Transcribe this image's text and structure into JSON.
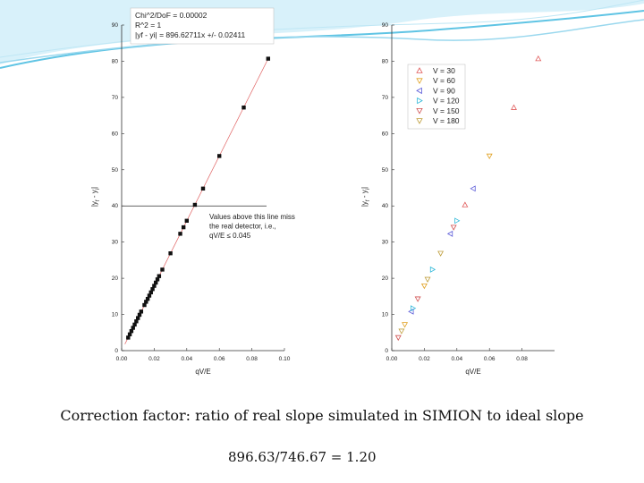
{
  "caption": "Correction factor: ratio of real slope simulated in SIMION to ideal slope",
  "ratio_text": "896.63/746.67 = 1.20",
  "colors": {
    "slide_wave": "#5fc4e4",
    "fit_line": "#e06060",
    "marker": "#111111"
  },
  "chart_data": [
    {
      "type": "scatter",
      "title": "",
      "xlabel": "qV/E",
      "ylabel": "|y_f - y_i|",
      "xlim": [
        0,
        0.1
      ],
      "ylim": [
        0,
        90
      ],
      "xticks": [
        "0.00",
        "0.02",
        "0.04",
        "0.06",
        "0.08",
        "0.10"
      ],
      "yticks": [
        "0",
        "10",
        "20",
        "30",
        "40",
        "50",
        "60",
        "70",
        "80",
        "90"
      ],
      "fit_box": [
        "Chi^2/DoF = 0.00002",
        "R^2    = 1",
        "|yf - yi| = 896.62711x   +/- 0.02411"
      ],
      "fit_slope": 896.62711,
      "threshold_y": 40,
      "annotation": [
        "Values above this line miss",
        "the real detector, i.e.,",
        "qV/E ≤ 0.045"
      ],
      "x": [
        0.004,
        0.005,
        0.006,
        0.007,
        0.008,
        0.009,
        0.01,
        0.011,
        0.012,
        0.014,
        0.015,
        0.016,
        0.017,
        0.018,
        0.019,
        0.02,
        0.021,
        0.022,
        0.023,
        0.025,
        0.03,
        0.036,
        0.038,
        0.04,
        0.045,
        0.05,
        0.06,
        0.075,
        0.09
      ],
      "y": [
        3.6,
        4.5,
        5.4,
        6.3,
        7.2,
        8.1,
        9.0,
        9.9,
        10.8,
        12.6,
        13.5,
        14.3,
        15.2,
        16.1,
        17.0,
        17.9,
        18.8,
        19.7,
        20.6,
        22.4,
        26.9,
        32.3,
        34.1,
        35.9,
        40.3,
        44.8,
        53.8,
        67.2,
        80.7
      ]
    },
    {
      "type": "scatter",
      "title": "",
      "xlabel": "qV/E",
      "ylabel": "|y_f - y_i|",
      "xlim": [
        0,
        0.1
      ],
      "ylim": [
        0,
        90
      ],
      "xticks": [
        "0.00",
        "0.02",
        "0.04",
        "0.06",
        "0.08"
      ],
      "yticks": [
        "0",
        "10",
        "20",
        "30",
        "40",
        "50",
        "60",
        "70",
        "80",
        "90"
      ],
      "legend_position": "top-left",
      "series": [
        {
          "name": "V = 30",
          "marker": "triangle-up",
          "color": "#e05a5a",
          "x": [
            0.045,
            0.075,
            0.09
          ],
          "y": [
            40.3,
            67.2,
            80.7
          ]
        },
        {
          "name": "V = 60",
          "marker": "triangle-down",
          "color": "#e0a020",
          "x": [
            0.008,
            0.02,
            0.06
          ],
          "y": [
            7.2,
            17.9,
            53.8
          ]
        },
        {
          "name": "V = 90",
          "marker": "triangle-left",
          "color": "#5a5ad8",
          "x": [
            0.012,
            0.036,
            0.05
          ],
          "y": [
            10.8,
            32.3,
            44.8
          ]
        },
        {
          "name": "V = 120",
          "marker": "triangle-right",
          "color": "#30b8d8",
          "x": [
            0.013,
            0.025,
            0.04
          ],
          "y": [
            11.7,
            22.4,
            35.9
          ]
        },
        {
          "name": "V = 150",
          "marker": "triangle-down",
          "color": "#d05050",
          "x": [
            0.004,
            0.016,
            0.038
          ],
          "y": [
            3.6,
            14.3,
            34.1
          ]
        },
        {
          "name": "V = 180",
          "marker": "triangle-down",
          "color": "#c0a040",
          "x": [
            0.006,
            0.022,
            0.03
          ],
          "y": [
            5.4,
            19.7,
            26.9
          ]
        }
      ]
    }
  ]
}
